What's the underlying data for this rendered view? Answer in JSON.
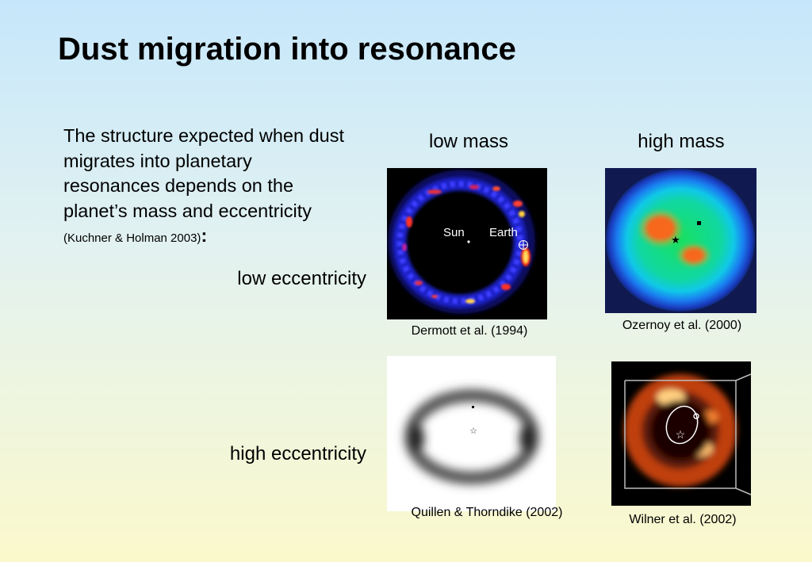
{
  "slide": {
    "title": "Dust migration into resonance",
    "intro_text": "The structure expected when dust migrates into planetary resonances depends on the planet’s mass and eccentricity",
    "intro_citation": "(Kuchner & Holman 2003)",
    "intro_colon": ":"
  },
  "columns": {
    "low_mass": "low mass",
    "high_mass": "high mass"
  },
  "rows": {
    "low_ecc": "low eccentricity",
    "high_ecc": "high eccentricity"
  },
  "panels": {
    "dermott": {
      "caption": "Dermott et al. (1994)",
      "sun_label": "Sun",
      "earth_label": "Earth"
    },
    "ozernoy": {
      "caption": "Ozernoy et al. (2000)"
    },
    "quillen": {
      "caption": "Quillen & Thorndike (2002)"
    },
    "wilner": {
      "caption": "Wilner et al. (2002)"
    }
  }
}
